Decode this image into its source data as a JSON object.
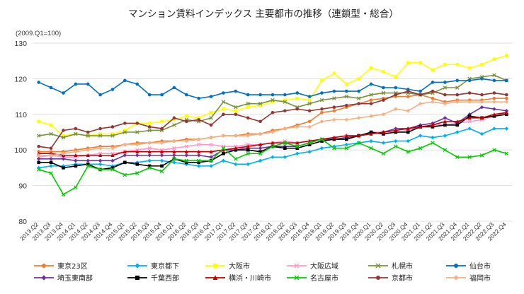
{
  "chart_data": {
    "type": "line",
    "title": "マンション賃料インデックス 主要都市の推移（連鎖型・総合）",
    "unit_label": "(2009.Q1=100)",
    "ylim": [
      80,
      130
    ],
    "yticks": [
      80,
      90,
      100,
      110,
      120,
      130
    ],
    "grid": true,
    "legend_position": "bottom",
    "x": [
      "2013.Q2",
      "2013.Q3",
      "2013.Q4",
      "2014.Q1",
      "2014.Q2",
      "2014.Q3",
      "2014.Q4",
      "2015.Q1",
      "2015.Q2",
      "2015.Q3",
      "2015.Q4",
      "2016.Q1",
      "2016.Q2",
      "2016.Q3",
      "2016.Q4",
      "2017.Q1",
      "2017.Q2",
      "2017.Q3",
      "2017.Q4",
      "2018.Q1",
      "2018.Q2",
      "2018.Q3",
      "2018.Q4",
      "2019.Q1",
      "2019.Q2",
      "2019.Q3",
      "2019.Q4",
      "2020.Q1",
      "2020.Q2",
      "2020.Q3",
      "2020.Q4",
      "2021.Q1",
      "2021.Q2",
      "2021.Q3",
      "2021.Q4",
      "2022.Q1",
      "2022.Q2",
      "2022.Q3",
      "2022.Q4"
    ],
    "series": [
      {
        "name": "東京23区",
        "color": "#ed7d31",
        "marker": "circle",
        "values": [
          99.5,
          99.5,
          99.5,
          100.0,
          100.5,
          101.0,
          101.0,
          101.5,
          102.0,
          102.0,
          102.5,
          102.5,
          103.0,
          103.0,
          103.5,
          104.0,
          104.0,
          104.5,
          104.5,
          105.5,
          106.0,
          107.0,
          108.0,
          110.5,
          111.0,
          112.0,
          113.0,
          114.0,
          114.5,
          115.0,
          115.0,
          115.5,
          114.5,
          113.5,
          114.0,
          114.0,
          114.0,
          114.5,
          114.5
        ]
      },
      {
        "name": "東京都下",
        "color": "#00b0f0",
        "marker": "diamond",
        "values": [
          95.0,
          95.5,
          95.5,
          96.0,
          96.0,
          96.0,
          95.5,
          96.5,
          96.5,
          97.0,
          97.0,
          96.5,
          96.0,
          95.5,
          95.5,
          97.0,
          96.0,
          96.0,
          97.0,
          98.0,
          98.0,
          99.0,
          99.5,
          100.5,
          101.0,
          101.5,
          102.0,
          102.5,
          102.0,
          102.5,
          102.5,
          104.0,
          103.5,
          104.0,
          105.0,
          106.0,
          104.5,
          106.0,
          106.0
        ]
      },
      {
        "name": "大阪市",
        "color": "#ffff00",
        "marker": "square",
        "values": [
          108.0,
          107.0,
          104.0,
          104.5,
          104.0,
          104.5,
          104.5,
          105.5,
          107.5,
          107.5,
          108.0,
          108.5,
          109.5,
          109.0,
          110.5,
          111.5,
          111.0,
          112.0,
          112.5,
          113.5,
          114.0,
          114.5,
          114.0,
          119.5,
          121.5,
          118.5,
          120.0,
          123.0,
          122.0,
          120.5,
          124.5,
          124.5,
          122.5,
          124.0,
          124.0,
          123.0,
          124.0,
          125.5,
          126.5
        ]
      },
      {
        "name": "大阪広域",
        "color": "#ff99cc",
        "marker": "cross",
        "values": [
          98.0,
          98.5,
          98.0,
          98.0,
          98.5,
          99.0,
          99.0,
          99.5,
          100.0,
          100.5,
          100.0,
          100.5,
          101.0,
          101.5,
          101.5,
          101.0,
          101.0,
          101.5,
          101.5,
          102.0,
          102.5,
          102.0,
          102.5,
          103.0,
          103.5,
          104.0,
          104.0,
          105.0,
          105.0,
          105.0,
          105.5,
          106.5,
          107.0,
          107.0,
          107.5,
          108.0,
          108.5,
          109.5,
          110.5
        ]
      },
      {
        "name": "札幌市",
        "color": "#76923c",
        "marker": "cross",
        "values": [
          104.0,
          104.5,
          103.5,
          104.5,
          104.0,
          104.0,
          104.0,
          105.0,
          105.0,
          105.5,
          105.5,
          107.0,
          108.5,
          108.0,
          109.0,
          113.5,
          112.0,
          113.0,
          113.0,
          114.0,
          113.5,
          112.0,
          113.0,
          114.0,
          114.5,
          115.0,
          114.5,
          115.5,
          116.0,
          116.0,
          116.0,
          115.5,
          116.0,
          117.5,
          117.5,
          120.0,
          120.5,
          121.0,
          119.5
        ]
      },
      {
        "name": "仙台市",
        "color": "#0070c0",
        "marker": "circle",
        "values": [
          119.0,
          117.5,
          116.0,
          118.5,
          118.5,
          115.5,
          117.0,
          119.5,
          118.5,
          115.5,
          115.5,
          117.5,
          115.5,
          114.5,
          115.0,
          116.0,
          116.5,
          115.5,
          115.5,
          115.5,
          115.5,
          116.0,
          115.0,
          116.0,
          116.5,
          116.5,
          116.5,
          118.5,
          117.5,
          117.5,
          117.0,
          116.5,
          119.0,
          119.0,
          119.5,
          119.5,
          120.0,
          119.5,
          119.5
        ]
      },
      {
        "name": "埼玉東南部",
        "color": "#7030a0",
        "marker": "diamond",
        "values": [
          97.5,
          97.5,
          97.5,
          97.0,
          97.0,
          97.0,
          97.0,
          98.5,
          98.5,
          98.5,
          98.5,
          98.5,
          98.5,
          98.5,
          98.0,
          100.0,
          100.0,
          100.5,
          100.5,
          101.0,
          101.0,
          101.0,
          102.0,
          103.0,
          103.0,
          103.5,
          104.0,
          104.5,
          105.0,
          106.0,
          106.0,
          107.0,
          107.5,
          109.0,
          107.5,
          110.0,
          112.0,
          111.5,
          111.0
        ]
      },
      {
        "name": "千葉西部",
        "color": "#000000",
        "marker": "square",
        "values": [
          96.5,
          96.5,
          95.0,
          95.5,
          96.0,
          94.5,
          95.0,
          96.5,
          96.0,
          95.5,
          95.5,
          97.5,
          96.5,
          96.5,
          97.0,
          99.0,
          100.0,
          100.0,
          99.5,
          101.0,
          100.5,
          100.5,
          101.5,
          102.5,
          103.0,
          103.0,
          104.0,
          105.0,
          104.5,
          105.0,
          105.0,
          106.5,
          106.5,
          107.0,
          107.0,
          109.5,
          109.0,
          109.5,
          110.0
        ]
      },
      {
        "name": "横浜・川崎市",
        "color": "#c00000",
        "marker": "triangle",
        "values": [
          99.0,
          99.0,
          98.5,
          98.5,
          98.5,
          98.5,
          98.5,
          99.5,
          99.5,
          99.5,
          99.5,
          99.5,
          99.5,
          99.5,
          99.5,
          100.0,
          100.5,
          101.0,
          101.5,
          102.0,
          102.0,
          102.0,
          102.5,
          103.0,
          103.5,
          104.0,
          104.0,
          104.5,
          105.0,
          105.5,
          106.0,
          106.5,
          107.0,
          108.0,
          108.0,
          109.0,
          109.0,
          110.0,
          110.5
        ]
      },
      {
        "name": "名古屋市",
        "color": "#00cc00",
        "marker": "cross",
        "values": [
          94.5,
          93.5,
          87.5,
          89.5,
          95.5,
          94.5,
          94.5,
          93.0,
          93.5,
          95.0,
          94.0,
          97.5,
          97.0,
          97.0,
          97.0,
          100.5,
          97.5,
          99.0,
          99.0,
          101.0,
          102.0,
          101.0,
          102.0,
          103.0,
          100.5,
          100.5,
          102.0,
          100.5,
          99.0,
          101.0,
          99.5,
          100.5,
          102.0,
          100.0,
          98.0,
          98.0,
          98.5,
          100.0,
          99.0
        ]
      },
      {
        "name": "京都市",
        "color": "#943634",
        "marker": "circle",
        "values": [
          101.0,
          100.5,
          105.5,
          106.0,
          105.0,
          106.0,
          106.5,
          107.5,
          107.5,
          106.5,
          106.0,
          109.0,
          108.0,
          108.5,
          107.0,
          110.0,
          110.0,
          109.0,
          108.0,
          110.5,
          111.0,
          111.5,
          111.0,
          111.5,
          112.0,
          112.5,
          113.0,
          113.0,
          114.0,
          115.5,
          116.5,
          115.5,
          116.5,
          115.5,
          115.5,
          116.0,
          115.5,
          116.0,
          115.5
        ]
      },
      {
        "name": "福岡市",
        "color": "#f4b183",
        "marker": "diamond",
        "values": [
          98.5,
          98.5,
          99.0,
          99.5,
          100.0,
          100.5,
          100.5,
          101.5,
          101.5,
          102.0,
          102.0,
          102.5,
          102.5,
          103.0,
          103.5,
          104.0,
          104.0,
          104.0,
          104.5,
          105.0,
          106.0,
          106.5,
          106.5,
          108.0,
          108.5,
          108.5,
          109.0,
          109.5,
          110.0,
          111.5,
          111.0,
          113.0,
          113.5,
          113.0,
          113.5,
          113.5,
          113.5,
          113.5,
          113.5
        ]
      }
    ]
  }
}
